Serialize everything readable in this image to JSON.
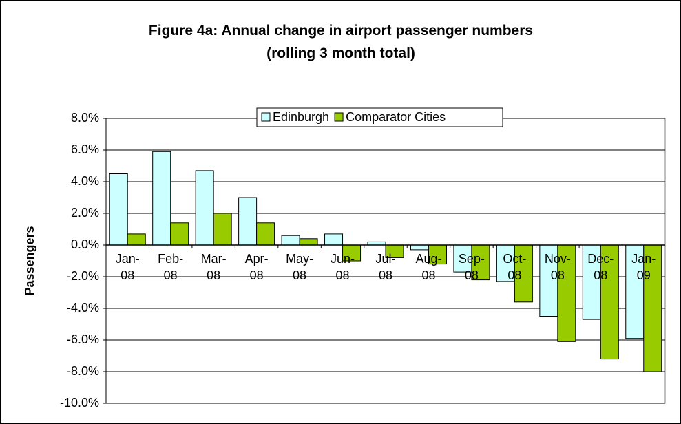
{
  "chart_data": {
    "type": "bar",
    "title": "Figure 4a: Annual change in airport passenger numbers (rolling 3 month total)",
    "y_label": "Passengers",
    "categories": [
      "Jan-08",
      "Feb-08",
      "Mar-08",
      "Apr-08",
      "May-08",
      "Jun-08",
      "Jul-08",
      "Aug-08",
      "Sep-08",
      "Oct-08",
      "Nov-08",
      "Dec-08",
      "Jan-09"
    ],
    "series": [
      {
        "name": "Edinburgh",
        "color": "#ccffff",
        "values": [
          4.5,
          5.9,
          4.7,
          3.0,
          0.6,
          0.7,
          0.2,
          -0.3,
          -1.7,
          -2.3,
          -4.5,
          -4.7,
          -5.9
        ]
      },
      {
        "name": "Comparator Cities",
        "color": "#99cc00",
        "values": [
          0.7,
          1.4,
          2.0,
          1.4,
          0.4,
          -1.0,
          -0.8,
          -1.2,
          -2.2,
          -3.6,
          -6.1,
          -7.2,
          -8.0
        ]
      }
    ],
    "ylim": [
      -10,
      8
    ],
    "yticks": [
      {
        "value": -10,
        "label": "-10.0%"
      },
      {
        "value": -8,
        "label": "-8.0%"
      },
      {
        "value": -6,
        "label": "-6.0%"
      },
      {
        "value": -4,
        "label": "-4.0%"
      },
      {
        "value": -2,
        "label": "-2.0%"
      },
      {
        "value": 0,
        "label": "0.0%"
      },
      {
        "value": 2,
        "label": "2.0%"
      },
      {
        "value": 4,
        "label": "4.0%"
      },
      {
        "value": 6,
        "label": "6.0%"
      },
      {
        "value": 8,
        "label": "8.0%"
      }
    ],
    "grid": true,
    "legend": "top"
  }
}
